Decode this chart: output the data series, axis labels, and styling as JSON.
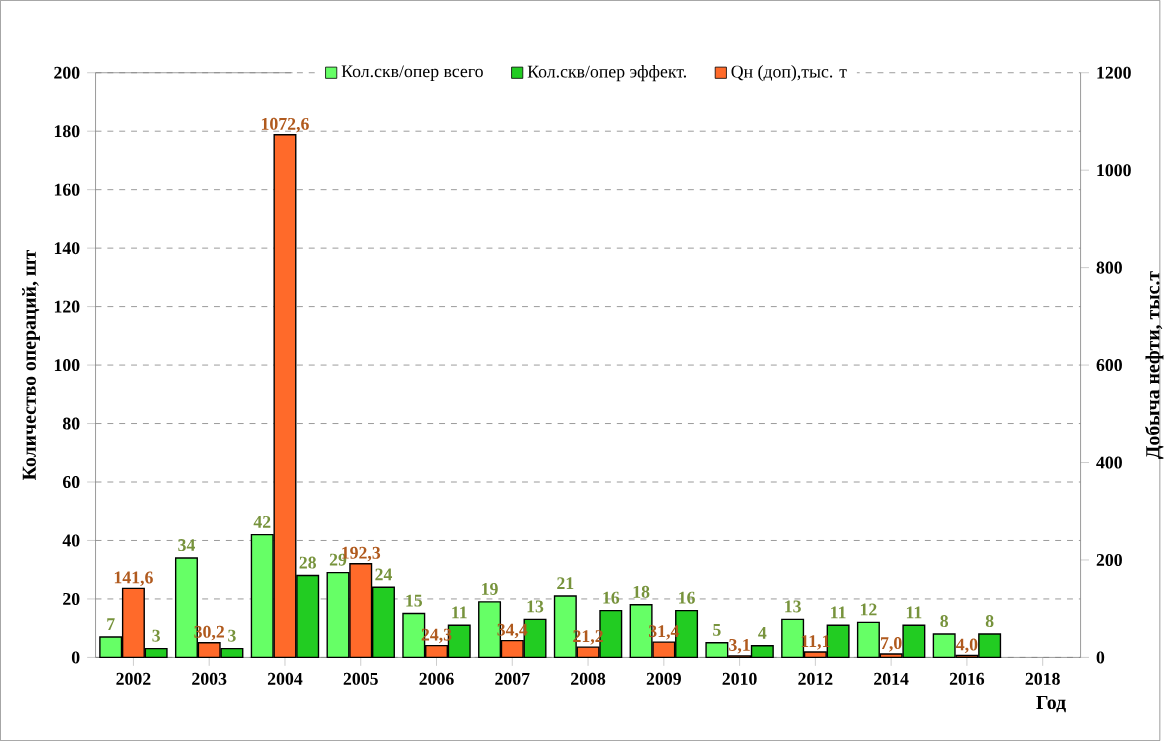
{
  "chart_data": {
    "type": "bar",
    "xlabel": "Год",
    "ylabel": "Количество операций, шт",
    "y2label": "Добыча нефти, тыс.т",
    "categories": [
      "2002",
      "2003",
      "2004",
      "2005",
      "2006",
      "2007",
      "2008",
      "2009",
      "2010",
      "2012",
      "2014",
      "2016",
      "2018"
    ],
    "series": [
      {
        "name": "Кол.скв/опер всего",
        "color": "#66ff66",
        "values": [
          7,
          34,
          42,
          29,
          15,
          19,
          21,
          18,
          5,
          13,
          12,
          8,
          null
        ],
        "value_labels": [
          "7",
          "34",
          "42",
          "29",
          "15",
          "19",
          "21",
          "18",
          "5",
          "13",
          "12",
          "8",
          null
        ]
      },
      {
        "name": "Кол.скв/опер эффект.",
        "color": "#22cc22",
        "values": [
          3,
          3,
          28,
          24,
          11,
          13,
          16,
          16,
          4,
          11,
          11,
          8,
          null
        ],
        "value_labels": [
          "3",
          "3",
          "28",
          "24",
          "11",
          "13",
          "16",
          "16",
          "4",
          "11",
          "11",
          "8",
          null
        ]
      },
      {
        "name": "Qн (доп),тыс. т",
        "color": "#ff6a2a",
        "axis": "y2",
        "values": [
          141.6,
          30.2,
          1072.6,
          192.3,
          24.3,
          34.4,
          21.2,
          31.4,
          3.1,
          11.1,
          7.0,
          4.0,
          null
        ],
        "value_labels": [
          "141,6",
          "30,2",
          "1072,6",
          "192,3",
          "24,3",
          "34,4",
          "21,2",
          "31,4",
          "3,1",
          "11,1",
          "7,0",
          "4,0",
          null
        ]
      }
    ],
    "ylim": [
      0,
      200
    ],
    "yticks": [
      0,
      20,
      40,
      60,
      80,
      100,
      120,
      140,
      160,
      180,
      200
    ],
    "y2lim": [
      0,
      1200
    ],
    "y2ticks": [
      0,
      200,
      400,
      600,
      800,
      1000,
      1200
    ],
    "grid": "y",
    "legend": "top"
  }
}
